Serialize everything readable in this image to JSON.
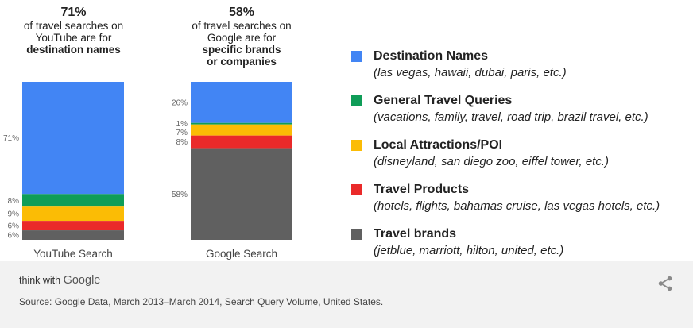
{
  "panels": [
    {
      "big": "71%",
      "desc1": "of travel searches on",
      "desc2": "YouTube are for",
      "bold1": "destination names",
      "bold2": ""
    },
    {
      "big": "58%",
      "desc1": "of travel searches on",
      "desc2": "Google are for",
      "bold1": "specific brands",
      "bold2": "or companies"
    }
  ],
  "colors": {
    "destination": "#4285f4",
    "general": "#0f9d58",
    "attractions": "#fbbc05",
    "products": "#ea2a2a",
    "brands": "#606060"
  },
  "chart_data": {
    "type": "bar",
    "stacked": true,
    "categories": [
      "YouTube Search",
      "Google Search"
    ],
    "series": [
      {
        "name": "Destination Names",
        "values": [
          71,
          26
        ],
        "labels": [
          "71%",
          "26%"
        ]
      },
      {
        "name": "General Travel Queries",
        "values": [
          8,
          1
        ],
        "labels": [
          "8%",
          "1%"
        ]
      },
      {
        "name": "Local Attractions/POI",
        "values": [
          9,
          7
        ],
        "labels": [
          "9%",
          "7%"
        ]
      },
      {
        "name": "Travel Products",
        "values": [
          6,
          8
        ],
        "labels": [
          "6%",
          "8%"
        ]
      },
      {
        "name": "Travel brands",
        "values": [
          6,
          58
        ],
        "labels": [
          "6%",
          "58%"
        ]
      }
    ]
  },
  "legend": [
    {
      "title": "Destination Names",
      "sub": "(las vegas, hawaii, dubai, paris, etc.)",
      "color": "#4285f4"
    },
    {
      "title": "General Travel Queries",
      "sub": "(vacations, family, travel, road trip, brazil travel, etc.)",
      "color": "#0f9d58"
    },
    {
      "title": "Local Attractions/POI",
      "sub": "(disneyland, san diego zoo, eiffel tower, etc.)",
      "color": "#fbbc05"
    },
    {
      "title": "Travel Products",
      "sub": "(hotels, flights, bahamas cruise, las vegas hotels, etc.)",
      "color": "#ea2a2a"
    },
    {
      "title": "Travel brands",
      "sub": "(jetblue, marriott, hilton, united, etc.)",
      "color": "#606060"
    }
  ],
  "footer": {
    "brand_prefix": "think with ",
    "brand_google": "Google",
    "source": "Source: Google Data, March 2013–March 2014, Search Query Volume, United States.",
    "share_icon": "share-icon"
  }
}
